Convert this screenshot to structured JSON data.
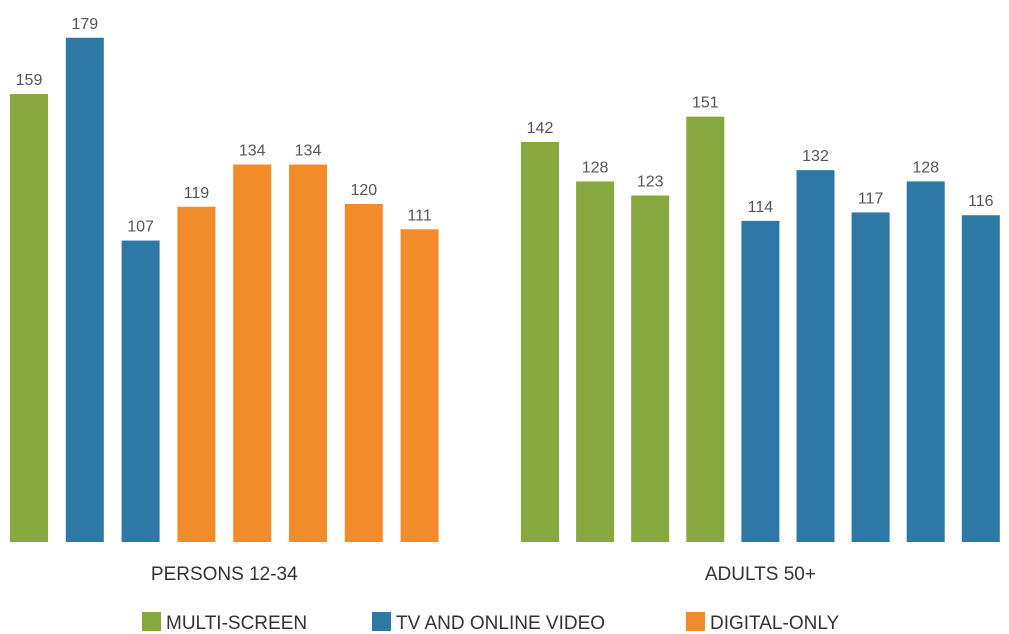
{
  "chart_data": {
    "type": "bar",
    "series": [
      {
        "name": "MULTI-SCREEN",
        "color": "#86a83e"
      },
      {
        "name": "TV AND ONLINE VIDEO",
        "color": "#2e78a6"
      },
      {
        "name": "DIGITAL-ONLY",
        "color": "#f28c2b"
      }
    ],
    "groups": [
      {
        "name": "PERSONS 12-34",
        "values": [
          159,
          179,
          107,
          119,
          134,
          134,
          120,
          111
        ],
        "colors": [
          "#86a83e",
          "#2e78a6",
          "#2e78a6",
          "#f28c2b",
          "#f28c2b",
          "#f28c2b",
          "#f28c2b",
          "#f28c2b"
        ]
      },
      {
        "name": "ADULTS 50+",
        "values": [
          142,
          128,
          123,
          151,
          114,
          132,
          117,
          128,
          116
        ],
        "colors": [
          "#86a83e",
          "#86a83e",
          "#86a83e",
          "#86a83e",
          "#2e78a6",
          "#2e78a6",
          "#2e78a6",
          "#2e78a6",
          "#2e78a6"
        ]
      }
    ]
  }
}
